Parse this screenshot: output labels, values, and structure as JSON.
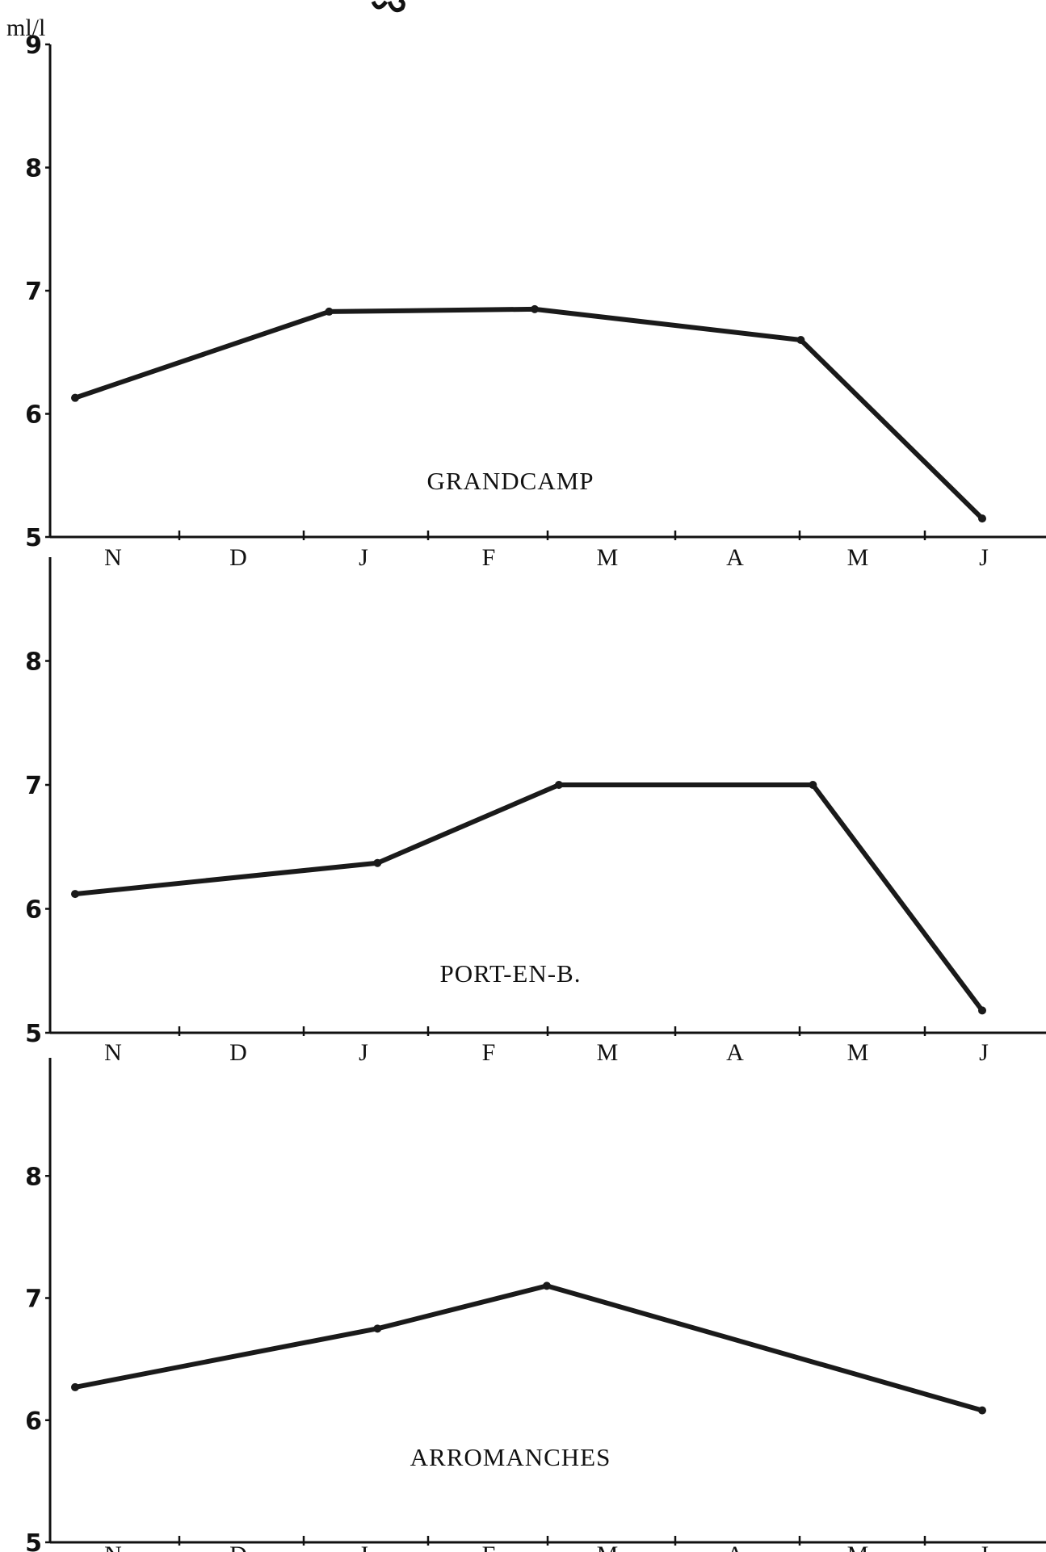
{
  "unit_label": "ml/l",
  "chart_data": [
    {
      "type": "line",
      "title": "GRANDCAMP",
      "categories": [
        "N",
        "D",
        "J",
        "F",
        "M",
        "A",
        "M",
        "J"
      ],
      "x": [
        0,
        2.5,
        5,
        7.5
      ],
      "y_ticks": [
        "5",
        "6",
        "7",
        "8",
        "9"
      ],
      "ylim": [
        5,
        9
      ],
      "series": [
        {
          "x": [
            0,
            2.1,
            3.8,
            6.0,
            7.5
          ],
          "values": [
            6.13,
            6.83,
            6.85,
            6.6,
            5.15
          ]
        }
      ]
    },
    {
      "type": "line",
      "title": "PORT-EN-B.",
      "categories": [
        "N",
        "D",
        "J",
        "F",
        "M",
        "A",
        "M",
        "J"
      ],
      "y_ticks": [
        "5",
        "6",
        "7",
        "8"
      ],
      "ylim": [
        5,
        9
      ],
      "series": [
        {
          "x": [
            0,
            2.5,
            4.0,
            6.1,
            7.5
          ],
          "values": [
            6.12,
            6.37,
            7.0,
            7.0,
            5.18
          ]
        }
      ]
    },
    {
      "type": "line",
      "title": "ARROMANCHES",
      "categories": [
        "N",
        "D",
        "J",
        "F",
        "M",
        "A",
        "M",
        "J"
      ],
      "y_ticks": [
        "5",
        "6",
        "7",
        "8"
      ],
      "ylim": [
        5,
        9
      ],
      "series": [
        {
          "x": [
            0,
            2.5,
            3.9,
            7.5
          ],
          "values": [
            6.27,
            6.75,
            7.1,
            6.08
          ]
        }
      ]
    }
  ]
}
